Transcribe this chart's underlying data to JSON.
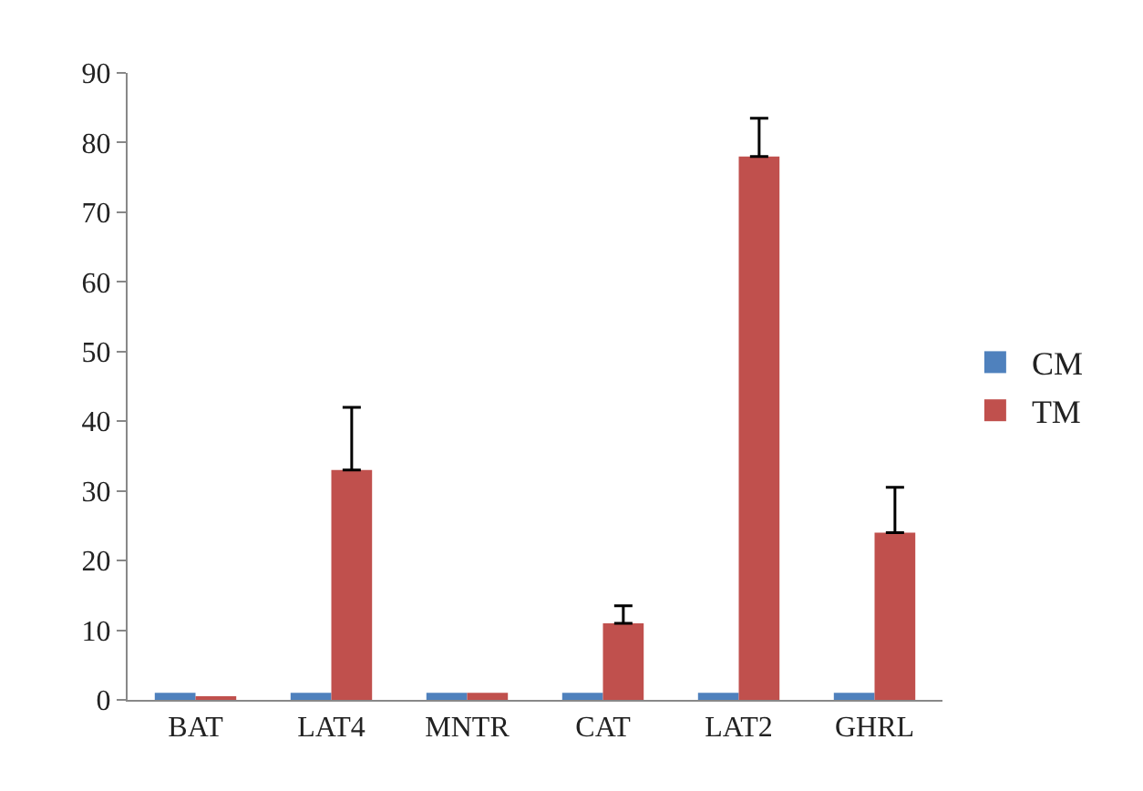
{
  "chart_data": {
    "type": "bar",
    "categories": [
      "BAT",
      "LAT4",
      "MNTR",
      "CAT",
      "LAT2",
      "GHRL"
    ],
    "series": [
      {
        "name": "CM",
        "color": "#4f81bd",
        "values": [
          1,
          1,
          1,
          1,
          1,
          1
        ]
      },
      {
        "name": "TM",
        "color": "#c0504d",
        "values": [
          0.4,
          33,
          1,
          11,
          78,
          24
        ],
        "errors": [
          null,
          [
            33,
            42
          ],
          null,
          [
            11,
            13.5
          ],
          [
            78,
            83.5
          ],
          [
            24,
            30.5
          ]
        ]
      }
    ],
    "ylim": [
      0,
      90
    ],
    "yticks": [
      0,
      10,
      20,
      30,
      40,
      50,
      60,
      70,
      80,
      90
    ],
    "grid": false,
    "legend": "right"
  }
}
